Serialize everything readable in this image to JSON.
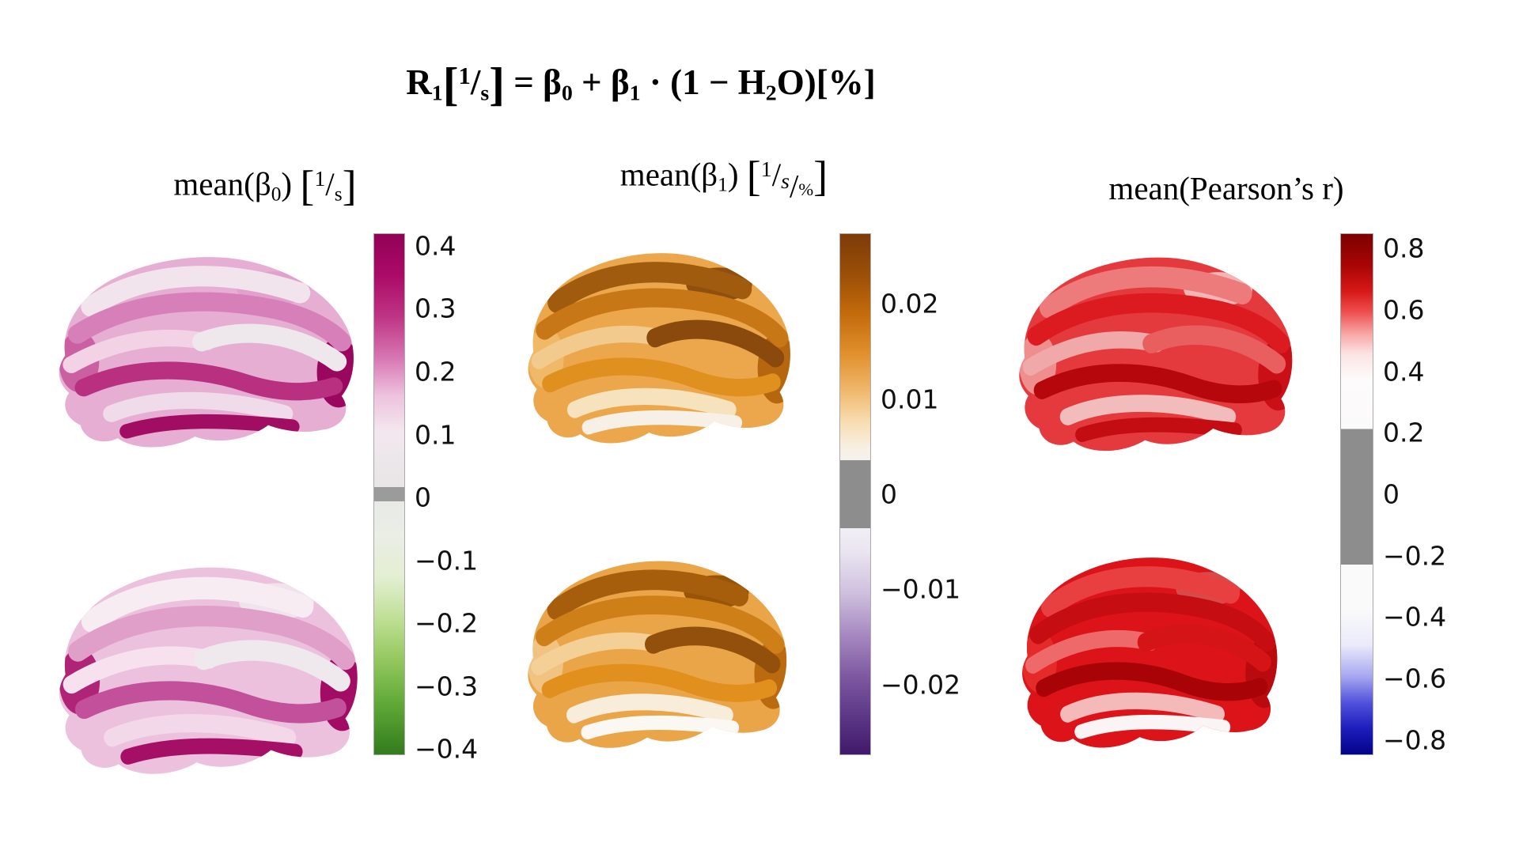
{
  "figure": {
    "background": "#ffffff",
    "formula_tokens": [
      {
        "t": "R",
        "s": "n"
      },
      {
        "t": "1",
        "s": "sub"
      },
      {
        "t": "[",
        "s": "big"
      },
      {
        "t": "1",
        "s": "sup"
      },
      {
        "t": "/",
        "s": "n"
      },
      {
        "t": "s",
        "s": "sub"
      },
      {
        "t": "]",
        "s": "big"
      },
      {
        "t": " = ",
        "s": "n"
      },
      {
        "t": "β",
        "s": "n"
      },
      {
        "t": "0",
        "s": "sub"
      },
      {
        "t": " + ",
        "s": "n"
      },
      {
        "t": "β",
        "s": "n"
      },
      {
        "t": "1",
        "s": "sub"
      },
      {
        "t": " · ",
        "s": "n"
      },
      {
        "t": "(1 − H",
        "s": "n"
      },
      {
        "t": "2",
        "s": "sub"
      },
      {
        "t": "O)[%]",
        "s": "n"
      }
    ],
    "panels": [
      {
        "id": "beta0",
        "title_tokens": [
          {
            "t": "mean(β",
            "s": "n"
          },
          {
            "t": "0",
            "s": "sub"
          },
          {
            "t": ") ",
            "s": "n"
          },
          {
            "t": "[",
            "s": "big"
          },
          {
            "t": "1",
            "s": "sup"
          },
          {
            "t": "/",
            "s": "n"
          },
          {
            "t": "s",
            "s": "sub"
          },
          {
            "t": "]",
            "s": "big"
          }
        ],
        "colorbar": {
          "min": -0.41,
          "max": 0.42,
          "ticks": [
            {
              "v": 0.4,
              "label": "0.4"
            },
            {
              "v": 0.3,
              "label": "0.3"
            },
            {
              "v": 0.2,
              "label": "0.2"
            },
            {
              "v": 0.1,
              "label": "0.1"
            },
            {
              "v": 0,
              "label": "0"
            },
            {
              "v": -0.1,
              "label": "−0.1"
            },
            {
              "v": -0.2,
              "label": "−0.2"
            },
            {
              "v": -0.3,
              "label": "−0.3"
            },
            {
              "v": -0.4,
              "label": "−0.4"
            }
          ],
          "gradient": [
            [
              0,
              "#930157"
            ],
            [
              8,
              "#ab0b66"
            ],
            [
              16,
              "#bf3584"
            ],
            [
              24,
              "#d878b4"
            ],
            [
              31,
              "#edc2de"
            ],
            [
              38,
              "#f4e7ef"
            ],
            [
              44,
              "#eae7e9"
            ],
            [
              48.6,
              "#e9e6e8"
            ],
            [
              48.6,
              "#9b9b9b"
            ],
            [
              51.4,
              "#9b9b9b"
            ],
            [
              51.4,
              "#e8eae6"
            ],
            [
              58,
              "#eaeee5"
            ],
            [
              66,
              "#e3efd2"
            ],
            [
              74,
              "#bfdf94"
            ],
            [
              82,
              "#93c75e"
            ],
            [
              90,
              "#61aa39"
            ],
            [
              100,
              "#327c1d"
            ]
          ],
          "border_color": "#aaaaaa"
        },
        "brains": {
          "top": [
            "#e6aed2",
            "#f1e4ec",
            "#d77fb9",
            "#f4d2e6",
            "#eee8ec",
            "#b8307f",
            "#efdbe9",
            "#a00d62",
            "#ca5fa2",
            "#99085e",
            "#e2a0cc"
          ],
          "bottom": [
            "#ecc1dd",
            "#f6ecf2",
            "#e09fc9",
            "#f7e1ee",
            "#efe9ed",
            "#c2509a",
            "#f2d8e8",
            "#a50f66",
            "#b02478",
            "#a30c64",
            "#f0e3ec"
          ]
        }
      },
      {
        "id": "beta1",
        "title_tokens": [
          {
            "t": "mean(β",
            "s": "n"
          },
          {
            "t": "1",
            "s": "sub"
          },
          {
            "t": ") ",
            "s": "n"
          },
          {
            "t": "[",
            "s": "big"
          },
          {
            "t": "1",
            "s": "sup"
          },
          {
            "t": "/",
            "s": "n"
          },
          {
            "t": "s",
            "s": "subi"
          },
          {
            "t": "/",
            "s": "slash2"
          },
          {
            "t": "%",
            "s": "sub2"
          },
          {
            "t": "]",
            "s": "big"
          }
        ],
        "colorbar": {
          "min": -0.0274,
          "max": 0.0274,
          "ticks": [
            {
              "v": 0.02,
              "label": "0.02"
            },
            {
              "v": 0.01,
              "label": "0.01"
            },
            {
              "v": 0,
              "label": "0"
            },
            {
              "v": -0.01,
              "label": "−0.01"
            },
            {
              "v": -0.02,
              "label": "−0.02"
            }
          ],
          "gradient": [
            [
              0,
              "#7c3b09"
            ],
            [
              8,
              "#9c5007"
            ],
            [
              15,
              "#c2690b"
            ],
            [
              23,
              "#e0902c"
            ],
            [
              30,
              "#f0b76c"
            ],
            [
              36,
              "#f8dcb0"
            ],
            [
              41,
              "#f8efe3"
            ],
            [
              43.5,
              "#f4f1ed"
            ],
            [
              43.5,
              "#8d8d8d"
            ],
            [
              56.5,
              "#8d8d8d"
            ],
            [
              56.5,
              "#f1eff4"
            ],
            [
              61,
              "#eae5f1"
            ],
            [
              69,
              "#cfc0de"
            ],
            [
              77,
              "#a689c1"
            ],
            [
              85,
              "#7e58a0"
            ],
            [
              93,
              "#5b3685"
            ],
            [
              100,
              "#41196c"
            ]
          ],
          "border_color": "#aaaaaa"
        },
        "brains": {
          "top": [
            "#eca74d",
            "#a05b0f",
            "#c87716",
            "#f3ca8d",
            "#8a4a0e",
            "#e0901f",
            "#f6e2bd",
            "#f6f0e7",
            "#efb968",
            "#b5660e",
            "#8f4f0f"
          ],
          "bottom": [
            "#eba549",
            "#a65e0d",
            "#cf7f17",
            "#f4cf96",
            "#93500c",
            "#e18f1d",
            "#f8eddb",
            "#fbf8f4",
            "#f1c382",
            "#bc6a0f",
            "#985508"
          ]
        }
      },
      {
        "id": "pearson-r",
        "title_tokens": [
          {
            "t": "mean(Pearson’s r)",
            "s": "n"
          }
        ],
        "colorbar": {
          "min": -0.85,
          "max": 0.85,
          "ticks": [
            {
              "v": 0.8,
              "label": "0.8"
            },
            {
              "v": 0.6,
              "label": "0.6"
            },
            {
              "v": 0.4,
              "label": "0.4"
            },
            {
              "v": 0.2,
              "label": "0.2"
            },
            {
              "v": 0,
              "label": "0"
            },
            {
              "v": -0.2,
              "label": "−0.2"
            },
            {
              "v": -0.4,
              "label": "−0.4"
            },
            {
              "v": -0.6,
              "label": "−0.6"
            },
            {
              "v": -0.8,
              "label": "−0.8"
            }
          ],
          "gradient": [
            [
              0,
              "#7d0000"
            ],
            [
              6,
              "#a80505"
            ],
            [
              11,
              "#d81818"
            ],
            [
              15,
              "#ee4f4f"
            ],
            [
              19,
              "#f7a3a3"
            ],
            [
              23,
              "#fce3e3"
            ],
            [
              28,
              "#fdfbfb"
            ],
            [
              37.5,
              "#fbfafa"
            ],
            [
              37.5,
              "#8d8d8d"
            ],
            [
              63.5,
              "#8d8d8d"
            ],
            [
              63.5,
              "#fbfafa"
            ],
            [
              72,
              "#fbfafa"
            ],
            [
              79,
              "#eaeafb"
            ],
            [
              85,
              "#a7a7f0"
            ],
            [
              90,
              "#5252dd"
            ],
            [
              95,
              "#1d1dbd"
            ],
            [
              100,
              "#030389"
            ]
          ],
          "border_color": "#aaaaaa"
        },
        "brains": {
          "top": [
            "#e43a3e",
            "#ee7b7b",
            "#dc1b20",
            "#f0a8a8",
            "#e95f5f",
            "#b5070c",
            "#f3bcbc",
            "#c30d12",
            "#ef8e8e",
            "#ca1016",
            "#f2b5b5"
          ],
          "bottom": [
            "#dc1318",
            "#e84040",
            "#c50d12",
            "#ee6a6a",
            "#d51418",
            "#a80408",
            "#f4b9b9",
            "#faf4f4",
            "#e52a2a",
            "#b90b0f",
            "#d84a4a"
          ]
        }
      }
    ]
  },
  "chart_data": [
    {
      "type": "heatmap",
      "figure_title": "R1[1/s] = β0 + β1 · (1 − H2O)[%]",
      "title": "mean(β0) [1/s]",
      "content": "two lateral cortical brain surface views colored by mean β0 per region",
      "colorbar_ticks": [
        0.4,
        0.3,
        0.2,
        0.1,
        0,
        -0.1,
        -0.2,
        -0.3,
        -0.4
      ],
      "colorbar_range": [
        -0.41,
        0.42
      ],
      "colormap": "dark magenta → pink → near-white → narrow gray band at 0 → near-white → green → dark green",
      "legend_position": "vertical colorbar right of brains",
      "observed_region_values": "most cortex ≈ 0.1–0.3 (pink/white); temporal and occipital regions ≈ 0.3–0.4 (dark magenta)"
    },
    {
      "type": "heatmap",
      "title": "mean(β1) [1/s/%]",
      "content": "two lateral cortical brain surface views colored by mean β1 per region",
      "colorbar_ticks": [
        0.02,
        0.01,
        0,
        -0.01,
        -0.02
      ],
      "colorbar_range": [
        -0.0274,
        0.0274
      ],
      "colormap": "dark brown → orange → near-white → wide gray band around 0 (≈±0.004) → near-white → purple → dark purple",
      "legend_position": "vertical colorbar right of brains",
      "observed_region_values": "fronto-parietal ≈ 0.015–0.025 (brown/orange); temporal lobe ≈ 0–0.01 (cream/white)"
    },
    {
      "type": "heatmap",
      "title": "mean(Pearson's r)",
      "content": "two lateral cortical brain surface views colored by mean Pearson correlation per region",
      "colorbar_ticks": [
        0.8,
        0.6,
        0.4,
        0.2,
        0,
        -0.2,
        -0.4,
        -0.6,
        -0.8
      ],
      "colorbar_range": [
        -0.85,
        0.85
      ],
      "colormap": "dark red → red → near-white → wide gray band around 0 (≈±0.22) → near-white → blue → dark blue",
      "legend_position": "vertical colorbar right of brains",
      "observed_region_values": "most cortex ≈ 0.6–0.85 (red); some temporal regions ≈ 0.3–0.5 (pink/white)"
    }
  ]
}
